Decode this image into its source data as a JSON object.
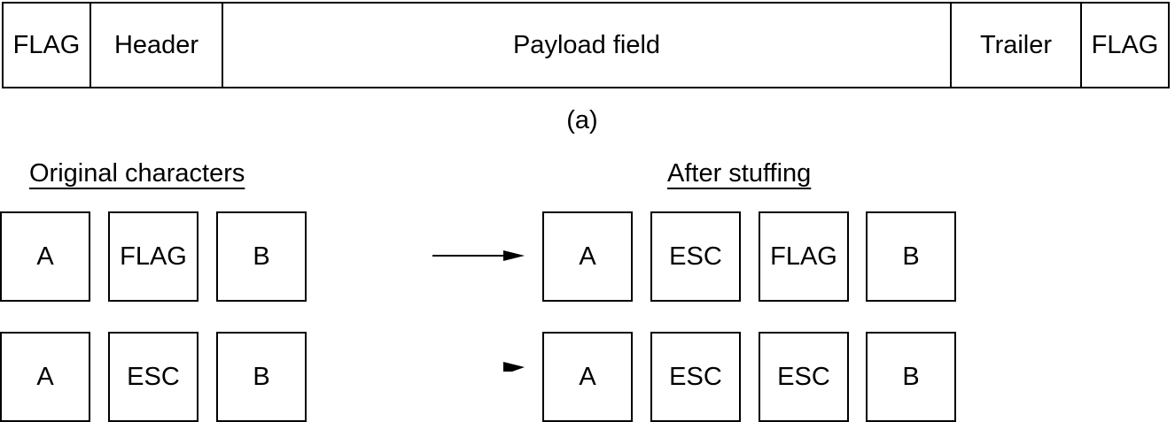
{
  "frame": {
    "fields": [
      "FLAG",
      "Header",
      "Payload field",
      "Trailer",
      "FLAG"
    ]
  },
  "caption_a": "(a)",
  "columns": {
    "original": "Original characters",
    "stuffed": "After stuffing"
  },
  "examples": [
    {
      "original": [
        "A",
        "FLAG",
        "B"
      ],
      "stuffed": [
        "A",
        "ESC",
        "FLAG",
        "B"
      ]
    },
    {
      "original": [
        "A",
        "ESC",
        "B"
      ],
      "stuffed": [
        "A",
        "ESC",
        "ESC",
        "B"
      ]
    }
  ]
}
